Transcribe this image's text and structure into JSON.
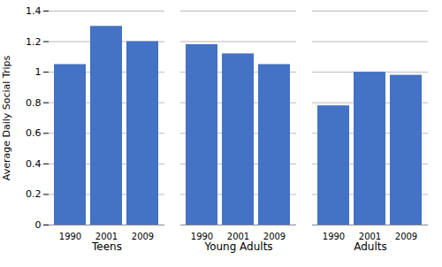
{
  "chart_data": {
    "type": "bar",
    "ylabel": "Average Daily Social Trips",
    "categories": [
      "Teens",
      "Young Adults",
      "Adults"
    ],
    "series": [
      {
        "name": "1990",
        "values": [
          1.05,
          1.18,
          0.78
        ]
      },
      {
        "name": "2001",
        "values": [
          1.3,
          1.12,
          1.0
        ]
      },
      {
        "name": "2009",
        "values": [
          1.2,
          1.05,
          0.98
        ]
      }
    ],
    "color": "#4472C4",
    "ylim": [
      0,
      1.4
    ],
    "yticks": [
      0,
      0.2,
      0.4,
      0.6,
      0.8,
      1,
      1.2,
      1.4
    ],
    "grid": true
  }
}
